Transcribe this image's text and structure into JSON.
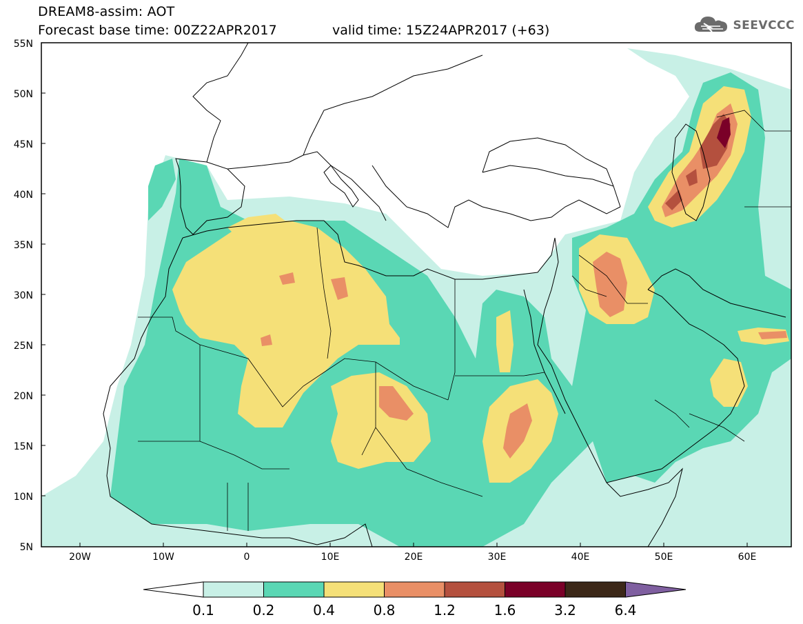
{
  "header": {
    "title": "DREAM8-assim: AOT",
    "base_time": "Forecast base time: 00Z22APR2017",
    "valid_time": "valid time: 15Z24APR2017 (+63)"
  },
  "logo": {
    "text": "SEEVCCC",
    "icon": "cloud-icon"
  },
  "axes": {
    "lat_labels": [
      "55N",
      "50N",
      "45N",
      "40N",
      "35N",
      "30N",
      "25N",
      "20N",
      "15N",
      "10N",
      "5N"
    ],
    "lon_labels": [
      "20W",
      "10W",
      "0",
      "10E",
      "20E",
      "30E",
      "40E",
      "50E",
      "60E"
    ]
  },
  "colorbar": {
    "levels": [
      "0.1",
      "0.2",
      "0.4",
      "0.8",
      "1.2",
      "1.6",
      "3.2",
      "6.4"
    ],
    "colors": [
      "#ffffff",
      "#c8f0e6",
      "#5ad7b4",
      "#f5e078",
      "#e98f66",
      "#b4503e",
      "#7a0028",
      "#3c2818",
      "#7f5fa0"
    ]
  }
}
